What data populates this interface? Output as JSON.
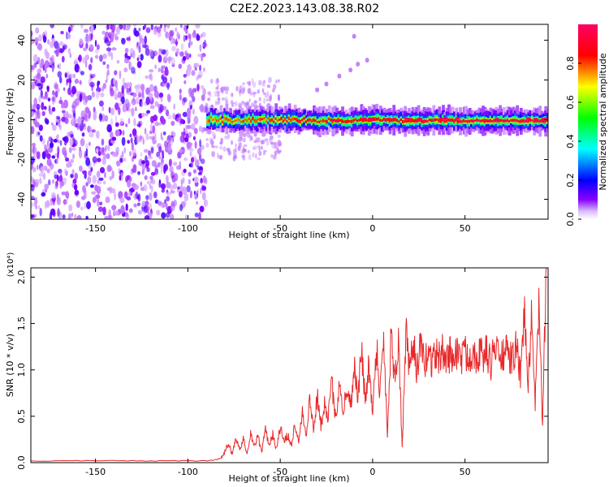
{
  "figure": {
    "title": "C2E2.2023.143.08.38.R02"
  },
  "chart_data": [
    {
      "type": "heatmap",
      "title": "",
      "xlabel": "Height of straight line (km)",
      "ylabel": "Frequency (Hz)",
      "xlim": [
        -185,
        95
      ],
      "ylim": [
        -50,
        48
      ],
      "xticks": [
        -150,
        -100,
        -50,
        0,
        50
      ],
      "yticks": [
        -40,
        -20,
        0,
        20,
        40
      ],
      "colorbar": {
        "label": "Normalized spectral amplitude",
        "range": [
          0,
          1
        ],
        "ticks": [
          "0.0",
          "0.2",
          "0.4",
          "0.6",
          "0.8"
        ],
        "colors": [
          "#ffffff",
          "#8a00ff",
          "#0000ff",
          "#00ffff",
          "#00ff00",
          "#ffff00",
          "#ff0000",
          "#ff0066"
        ]
      },
      "regions": [
        {
          "name": "noise",
          "x_range": [
            -185,
            -90
          ],
          "freq_range": [
            -50,
            48
          ],
          "amplitude": 0.15
        },
        {
          "name": "signal",
          "x_range": [
            -90,
            95
          ],
          "center_freq": 0,
          "bandwidth_hz": 6,
          "amplitude_peak": 0.95
        }
      ],
      "faint_trace": [
        [
          -30,
          15
        ],
        [
          -25,
          18
        ],
        [
          -18,
          22
        ],
        [
          -12,
          25
        ],
        [
          -8,
          28
        ],
        [
          -3,
          30
        ],
        [
          -10,
          42
        ]
      ]
    },
    {
      "type": "line",
      "title": "",
      "xlabel": "Height of straight line (km)",
      "ylabel": "SNR (10 * v/v)",
      "y_multiplier": "(x10⁴)",
      "xlim": [
        -185,
        95
      ],
      "ylim": [
        0,
        2.1
      ],
      "xticks": [
        -150,
        -100,
        -50,
        0,
        50
      ],
      "yticks": [
        "0.0",
        "0.5",
        "1.0",
        "1.5",
        "2.0"
      ],
      "series_color": "#e8282a",
      "series": [
        {
          "name": "",
          "x": [
            -185,
            -170,
            -150,
            -130,
            -110,
            -90,
            -85,
            -82,
            -80,
            -78,
            -76,
            -74,
            -72,
            -70,
            -68,
            -66,
            -64,
            -62,
            -60,
            -58,
            -56,
            -54,
            -52,
            -50,
            -48,
            -46,
            -44,
            -42,
            -40,
            -38,
            -36,
            -34,
            -32,
            -30,
            -28,
            -26,
            -24,
            -22,
            -20,
            -18,
            -16,
            -14,
            -12,
            -10,
            -8,
            -6,
            -4,
            -2,
            0,
            2,
            4,
            6,
            8,
            10,
            12,
            14,
            16,
            18,
            20,
            22,
            24,
            26,
            28,
            30,
            32,
            34,
            36,
            38,
            40,
            42,
            44,
            46,
            48,
            50,
            52,
            54,
            56,
            58,
            60,
            62,
            64,
            66,
            68,
            70,
            72,
            74,
            76,
            78,
            80,
            82,
            84,
            86,
            88,
            90,
            92,
            94
          ],
          "y": [
            0.02,
            0.02,
            0.02,
            0.02,
            0.02,
            0.02,
            0.03,
            0.05,
            0.12,
            0.22,
            0.08,
            0.28,
            0.15,
            0.25,
            0.1,
            0.32,
            0.18,
            0.28,
            0.12,
            0.35,
            0.2,
            0.3,
            0.15,
            0.38,
            0.22,
            0.3,
            0.18,
            0.42,
            0.25,
            0.55,
            0.3,
            0.68,
            0.35,
            0.72,
            0.4,
            0.65,
            0.5,
            0.85,
            0.45,
            0.9,
            0.55,
            0.8,
            0.6,
            1.05,
            0.7,
            1.2,
            0.65,
            1.1,
            0.5,
            1.3,
            0.75,
            1.35,
            0.3,
            1.4,
            0.9,
            1.35,
            0.15,
            1.4,
            0.95,
            1.3,
            1.0,
            1.25,
            1.05,
            1.2,
            1.1,
            1.18,
            1.12,
            1.2,
            1.1,
            1.18,
            1.15,
            1.2,
            1.12,
            1.18,
            1.15,
            1.2,
            1.16,
            1.18,
            1.14,
            1.2,
            1.05,
            1.3,
            1.12,
            1.15,
            1.2,
            1.1,
            1.15,
            1.25,
            0.9,
            1.7,
            0.8,
            1.5,
            0.6,
            1.72,
            0.4,
            2.1
          ]
        }
      ]
    }
  ]
}
